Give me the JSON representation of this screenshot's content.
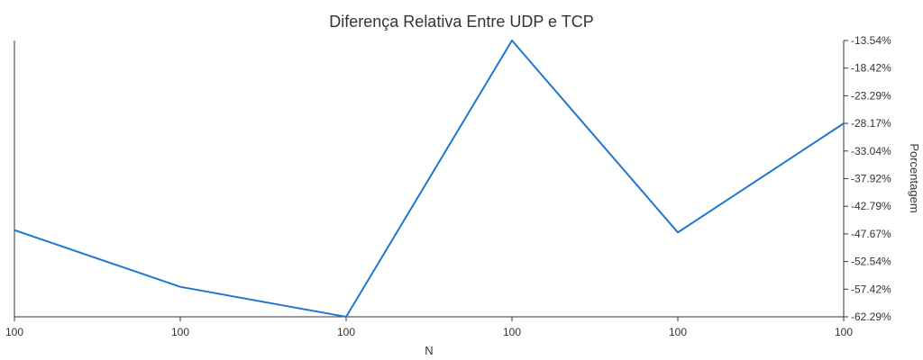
{
  "chart_data": {
    "type": "line",
    "title": "Diferença Relativa Entre UDP e TCP",
    "xlabel": "N",
    "ylabel": "Porcentagem",
    "categories": [
      "100",
      "100",
      "100",
      "100",
      "100",
      "100"
    ],
    "series": [
      {
        "values": [
          -47.0,
          -57.0,
          -62.29,
          -13.54,
          -47.4,
          -28.17
        ],
        "color": "#1f77d0"
      }
    ],
    "y_ticks": [
      "-13.54%",
      "-18.42%",
      "-23.29%",
      "-28.17%",
      "-33.04%",
      "-37.92%",
      "-42.79%",
      "-47.67%",
      "-52.54%",
      "-57.42%",
      "-62.29%"
    ],
    "ylim": [
      -62.29,
      -13.54
    ],
    "y_axis_side": "right",
    "grid": false
  }
}
